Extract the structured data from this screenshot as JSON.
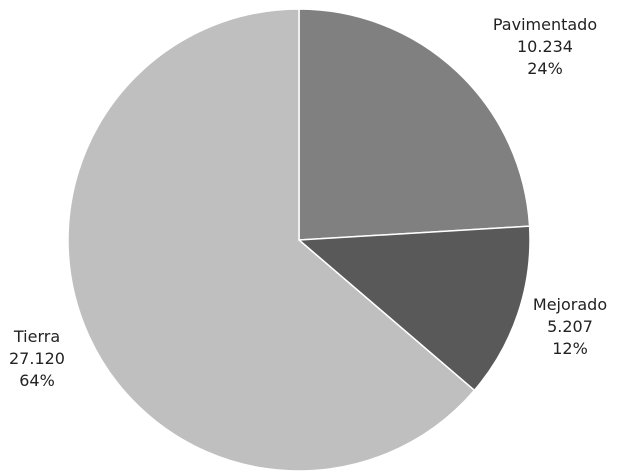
{
  "chart_data": {
    "type": "pie",
    "title": "",
    "start_angle_deg": 0,
    "direction": "clockwise",
    "slices": [
      {
        "label": "Pavimentado",
        "value_text": "10.234",
        "percent_text": "24%",
        "value": 10234,
        "percent": 24,
        "color": "#808080"
      },
      {
        "label": "Mejorado",
        "value_text": "5.207",
        "percent_text": "12%",
        "value": 5207,
        "percent": 12,
        "color": "#595959"
      },
      {
        "label": "Tierra",
        "value_text": "27.120",
        "percent_text": "64%",
        "value": 27120,
        "percent": 64,
        "color": "#bfbfbf"
      }
    ]
  }
}
